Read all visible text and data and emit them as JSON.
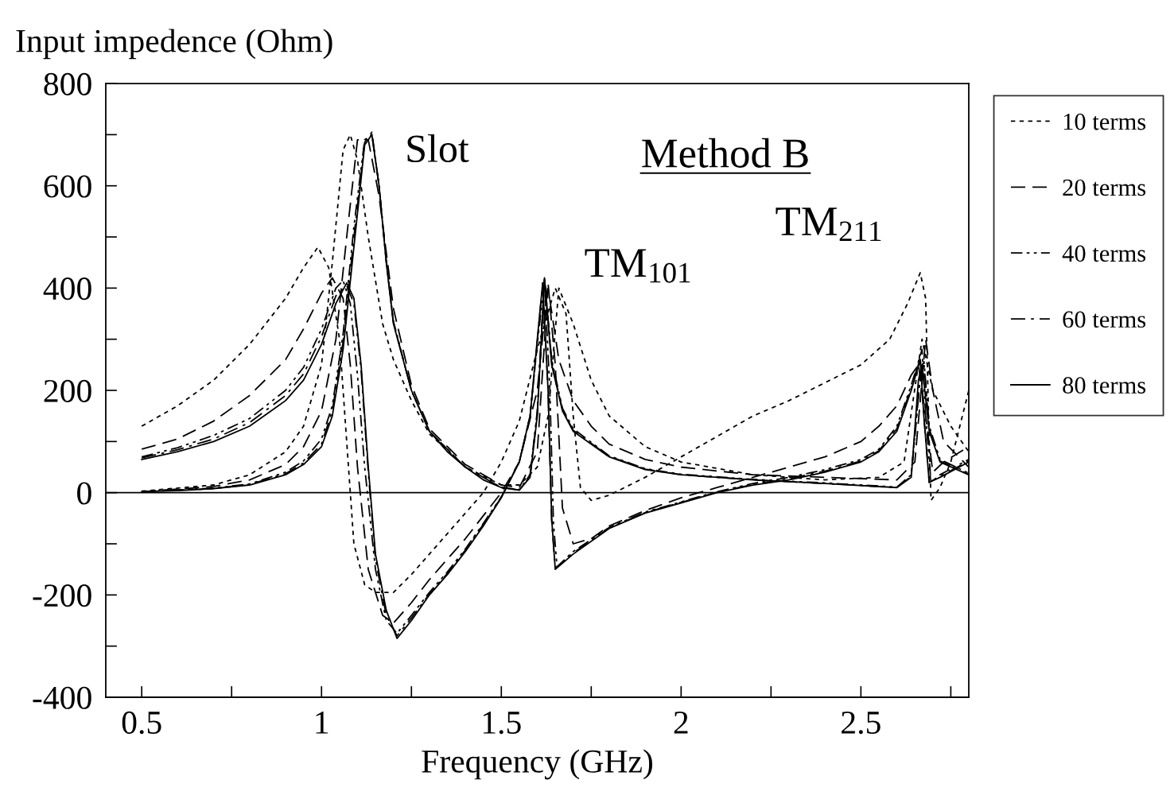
{
  "chart_data": {
    "type": "line",
    "xlabel": "Frequency (GHz)",
    "ylabel": "Input impedence (Ohm)",
    "xlim": [
      0.4,
      2.8
    ],
    "ylim": [
      -400,
      800
    ],
    "xticks": [
      0.5,
      {
        "value": 0.75,
        "label": null
      },
      1,
      {
        "value": 1.25,
        "label": null
      },
      1.5,
      {
        "value": 1.75,
        "label": null
      },
      2,
      {
        "value": 2.25,
        "label": null
      },
      2.5,
      {
        "value": 2.75,
        "label": null
      }
    ],
    "yticks": [
      -400,
      {
        "value": -300,
        "label": null
      },
      -200,
      {
        "value": -100,
        "label": null
      },
      0,
      {
        "value": 100,
        "label": null
      },
      200,
      {
        "value": 300,
        "label": null
      },
      400,
      {
        "value": 500,
        "label": null
      },
      600,
      {
        "value": 700,
        "label": null
      },
      800
    ],
    "grid": false,
    "legend": "right",
    "marker": "none",
    "ref_lines": [
      {
        "axis": "y",
        "value": 0,
        "color": "#000000",
        "line_style": "solid"
      }
    ],
    "annotations": [
      {
        "text": "Slot",
        "x": 1.14,
        "y": 700
      },
      "Method B",
      {
        "text": "TM$_{101}$",
        "x": 1.62,
        "y": 420
      },
      {
        "text": "TM$_{211}$",
        "x": 2.67,
        "y": 430
      }
    ],
    "series": [
      {
        "name": "10 terms",
        "color": "#000000",
        "line_style": "dotted",
        "x": [
          0.5,
          0.7,
          0.8,
          0.9,
          0.95,
          1.0,
          1.03,
          1.06,
          1.08,
          1.1,
          1.13,
          1.17,
          1.2,
          1.25,
          1.3,
          1.4,
          1.5,
          1.55,
          1.6,
          1.63,
          1.66,
          1.7,
          1.75,
          1.8,
          1.9,
          2.0,
          2.2,
          2.4,
          2.55,
          2.62,
          2.67,
          2.7,
          2.75,
          2.8
        ],
        "values": [
          3,
          15,
          35,
          80,
          130,
          250,
          450,
          670,
          700,
          650,
          500,
          330,
          260,
          180,
          115,
          50,
          15,
          15,
          50,
          150,
          400,
          330,
          220,
          150,
          90,
          60,
          35,
          25,
          30,
          60,
          300,
          200,
          130,
          80
        ]
      },
      {
        "color": "#000000",
        "line_style": "dotted",
        "x": [
          0.5,
          0.6,
          0.7,
          0.8,
          0.9,
          0.95,
          0.99,
          1.02,
          1.05,
          1.07,
          1.09,
          1.12,
          1.15,
          1.2,
          1.25,
          1.3,
          1.35,
          1.4,
          1.45,
          1.5,
          1.55,
          1.6,
          1.65,
          1.68,
          1.7,
          1.72,
          1.75,
          1.8,
          1.9,
          2.0,
          2.1,
          2.2,
          2.3,
          2.4,
          2.5,
          2.58,
          2.63,
          2.665,
          2.68,
          2.69,
          2.695,
          2.72,
          2.75,
          2.8
        ],
        "values": [
          130,
          170,
          220,
          290,
          380,
          440,
          480,
          440,
          300,
          100,
          -100,
          -180,
          -195,
          -195,
          -160,
          -120,
          -80,
          -40,
          0,
          60,
          140,
          280,
          400,
          350,
          150,
          10,
          -15,
          -5,
          30,
          70,
          110,
          150,
          180,
          215,
          250,
          300,
          370,
          430,
          380,
          100,
          -15,
          10,
          60,
          200
        ]
      },
      {
        "name": "20 terms",
        "color": "#000000",
        "line_style": "dashed",
        "x": [
          0.5,
          0.7,
          0.8,
          0.9,
          0.95,
          1.0,
          1.04,
          1.07,
          1.1,
          1.13,
          1.16,
          1.2,
          1.25,
          1.3,
          1.4,
          1.5,
          1.55,
          1.6,
          1.63,
          1.66,
          1.7,
          1.75,
          1.8,
          1.9,
          2.0,
          2.2,
          2.4,
          2.6,
          2.65,
          2.68,
          2.7,
          2.73,
          2.8
        ],
        "values": [
          2,
          12,
          25,
          55,
          90,
          160,
          300,
          500,
          690,
          690,
          580,
          360,
          210,
          125,
          55,
          15,
          10,
          80,
          400,
          260,
          180,
          130,
          95,
          65,
          50,
          35,
          30,
          25,
          60,
          300,
          200,
          100,
          50
        ]
      },
      {
        "color": "#000000",
        "line_style": "dashed",
        "x": [
          0.5,
          0.6,
          0.7,
          0.8,
          0.9,
          0.95,
          1.0,
          1.03,
          1.06,
          1.08,
          1.1,
          1.13,
          1.17,
          1.2,
          1.25,
          1.3,
          1.35,
          1.4,
          1.45,
          1.5,
          1.55,
          1.6,
          1.63,
          1.65,
          1.67,
          1.7,
          1.75,
          1.8,
          1.9,
          2.0,
          2.1,
          2.2,
          2.3,
          2.4,
          2.5,
          2.55,
          2.6,
          2.64,
          2.66,
          2.68,
          2.7,
          2.73,
          2.8
        ],
        "values": [
          85,
          105,
          140,
          190,
          260,
          320,
          390,
          420,
          380,
          250,
          50,
          -150,
          -240,
          -255,
          -215,
          -170,
          -130,
          -90,
          -45,
          0,
          60,
          200,
          410,
          250,
          -30,
          -100,
          -90,
          -65,
          -35,
          -10,
          10,
          30,
          50,
          70,
          100,
          130,
          170,
          230,
          250,
          150,
          40,
          60,
          90
        ]
      },
      {
        "name": "40 terms",
        "color": "#000000",
        "line_style": "dashdotdot",
        "x": [
          0.5,
          0.7,
          0.8,
          0.9,
          0.95,
          1.0,
          1.03,
          1.06,
          1.09,
          1.12,
          1.14,
          1.16,
          1.18,
          1.2,
          1.25,
          1.3,
          1.4,
          1.5,
          1.55,
          1.58,
          1.6,
          1.62,
          1.64,
          1.67,
          1.7,
          1.8,
          1.9,
          2.0,
          2.2,
          2.4,
          2.6,
          2.64,
          2.665,
          2.675,
          2.69,
          2.72,
          2.8
        ],
        "values": [
          2,
          9,
          17,
          40,
          62,
          105,
          170,
          310,
          520,
          690,
          700,
          600,
          455,
          335,
          200,
          120,
          50,
          10,
          6,
          35,
          160,
          420,
          260,
          165,
          125,
          72,
          47,
          36,
          26,
          19,
          11,
          35,
          230,
          260,
          130,
          65,
          38
        ]
      },
      {
        "color": "#000000",
        "line_style": "dashdotdot",
        "x": [
          0.5,
          0.6,
          0.7,
          0.8,
          0.9,
          0.95,
          1.0,
          1.04,
          1.06,
          1.08,
          1.1,
          1.12,
          1.15,
          1.18,
          1.21,
          1.25,
          1.3,
          1.35,
          1.4,
          1.45,
          1.5,
          1.55,
          1.58,
          1.6,
          1.62,
          1.635,
          1.645,
          1.655,
          1.7,
          1.8,
          1.9,
          2.0,
          2.1,
          2.2,
          2.3,
          2.4,
          2.5,
          2.55,
          2.6,
          2.64,
          2.67,
          2.68,
          2.695,
          2.72,
          2.8
        ],
        "values": [
          70,
          88,
          112,
          145,
          200,
          245,
          320,
          400,
          415,
          370,
          230,
          50,
          -150,
          -250,
          -275,
          -240,
          -195,
          -155,
          -110,
          -60,
          -8,
          60,
          150,
          290,
          415,
          200,
          -60,
          -145,
          -115,
          -68,
          -38,
          -18,
          2,
          18,
          30,
          45,
          65,
          85,
          130,
          210,
          280,
          150,
          20,
          35,
          65
        ]
      },
      {
        "name": "60 terms",
        "color": "#000000",
        "line_style": "dashdot",
        "x": [
          0.5,
          0.7,
          0.8,
          0.9,
          0.95,
          1.0,
          1.03,
          1.06,
          1.09,
          1.12,
          1.14,
          1.16,
          1.18,
          1.2,
          1.25,
          1.3,
          1.4,
          1.5,
          1.55,
          1.58,
          1.6,
          1.62,
          1.64,
          1.67,
          1.7,
          1.8,
          1.9,
          2.0,
          2.2,
          2.4,
          2.6,
          2.64,
          2.665,
          2.675,
          2.69,
          2.72,
          2.8
        ],
        "values": [
          2,
          8,
          16,
          37,
          58,
          95,
          160,
          295,
          500,
          685,
          705,
          600,
          452,
          332,
          200,
          120,
          50,
          10,
          5,
          32,
          155,
          420,
          255,
          162,
          122,
          71,
          46,
          35,
          25,
          18,
          10,
          32,
          225,
          255,
          125,
          62,
          36
        ]
      },
      {
        "color": "#000000",
        "line_style": "dashdot",
        "x": [
          0.5,
          0.6,
          0.7,
          0.8,
          0.9,
          0.95,
          1.0,
          1.04,
          1.07,
          1.09,
          1.11,
          1.13,
          1.15,
          1.18,
          1.21,
          1.25,
          1.3,
          1.35,
          1.4,
          1.45,
          1.5,
          1.55,
          1.58,
          1.6,
          1.615,
          1.63,
          1.64,
          1.65,
          1.7,
          1.8,
          1.9,
          2.0,
          2.1,
          2.2,
          2.3,
          2.4,
          2.5,
          2.55,
          2.6,
          2.64,
          2.665,
          2.675,
          2.69,
          2.72,
          2.8
        ],
        "values": [
          68,
          84,
          105,
          137,
          190,
          232,
          305,
          385,
          405,
          370,
          240,
          40,
          -130,
          -240,
          -280,
          -245,
          -198,
          -158,
          -112,
          -62,
          -9,
          60,
          150,
          295,
          410,
          200,
          -55,
          -148,
          -118,
          -69,
          -39,
          -19,
          1,
          16,
          27,
          42,
          62,
          82,
          125,
          205,
          265,
          150,
          20,
          32,
          62
        ]
      },
      {
        "name": "80 terms",
        "color": "#000000",
        "line_style": "solid",
        "x": [
          0.5,
          0.6,
          0.7,
          0.8,
          0.9,
          0.95,
          1.0,
          1.03,
          1.06,
          1.09,
          1.12,
          1.14,
          1.16,
          1.18,
          1.2,
          1.25,
          1.3,
          1.35,
          1.4,
          1.45,
          1.5,
          1.55,
          1.58,
          1.6,
          1.62,
          1.64,
          1.67,
          1.7,
          1.8,
          1.9,
          2.0,
          2.2,
          2.4,
          2.6,
          2.64,
          2.66,
          2.67,
          2.69,
          2.72,
          2.8
        ],
        "values": [
          2,
          4,
          8,
          15,
          35,
          55,
          90,
          150,
          280,
          480,
          680,
          700,
          600,
          450,
          330,
          200,
          120,
          80,
          50,
          25,
          10,
          5,
          30,
          150,
          420,
          250,
          160,
          120,
          70,
          45,
          35,
          25,
          18,
          10,
          30,
          220,
          250,
          120,
          60,
          35
        ]
      },
      {
        "color": "#000000",
        "line_style": "solid",
        "x": [
          0.5,
          0.6,
          0.7,
          0.8,
          0.9,
          0.95,
          1.0,
          1.04,
          1.07,
          1.09,
          1.11,
          1.13,
          1.15,
          1.18,
          1.21,
          1.25,
          1.3,
          1.35,
          1.4,
          1.45,
          1.5,
          1.55,
          1.58,
          1.6,
          1.615,
          1.63,
          1.64,
          1.65,
          1.7,
          1.8,
          1.9,
          2.0,
          2.1,
          2.2,
          2.3,
          2.4,
          2.5,
          2.55,
          2.6,
          2.64,
          2.665,
          2.675,
          2.69,
          2.72,
          2.8
        ],
        "values": [
          65,
          80,
          100,
          130,
          180,
          220,
          290,
          370,
          410,
          380,
          250,
          50,
          -120,
          -230,
          -285,
          -250,
          -200,
          -160,
          -115,
          -65,
          -10,
          60,
          150,
          300,
          410,
          200,
          -50,
          -150,
          -120,
          -70,
          -40,
          -20,
          0,
          15,
          25,
          40,
          60,
          80,
          120,
          200,
          260,
          150,
          20,
          30,
          60
        ]
      }
    ]
  }
}
